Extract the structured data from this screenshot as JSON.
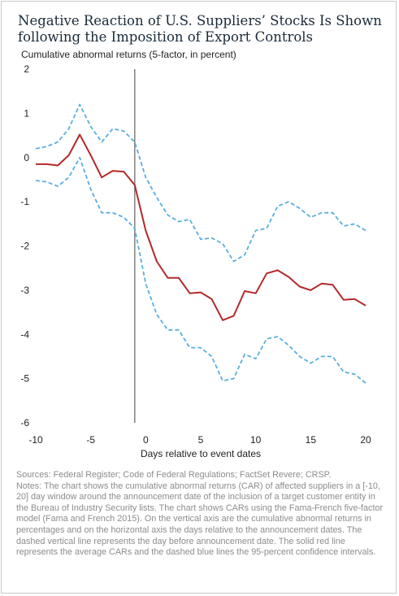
{
  "title": "Negative Reaction of U.S. Suppliers’ Stocks Is Shown following the Imposition of Export Controls",
  "sources": "Sources: Federal Register; Code of Federal Regulations; FactSet Revere; CRSP.",
  "notes": "Notes: The chart shows the cumulative abnormal returns (CAR) of affected suppliers in a [-10, 20] day window around the announcement date of the inclusion of a target customer entity in the Bureau of Industry Security lists. The chart shows CARs using the Fama-French five-factor model (Fama and French 2015). On the vertical axis are the cumulative abnormal returns in percentages and on the horizontal axis the days relative to the announcement dates. The dashed vertical line represents the day before announcement date. The solid red line represents the average CARs and the dashed blue lines the 95-percent confidence intervals.",
  "chart_data": {
    "type": "line",
    "ylabel": "Cumulative abnormal returns (5-factor, in percent)",
    "xlabel": "Days relative to event dates",
    "xlim": [
      -10,
      20
    ],
    "ylim": [
      -6,
      2
    ],
    "xticks": [
      -10,
      -5,
      0,
      5,
      10,
      15,
      20
    ],
    "yticks": [
      2,
      1,
      0,
      -1,
      -2,
      -3,
      -4,
      -5,
      -6
    ],
    "grid": false,
    "vline_x": -1,
    "x": [
      -10,
      -9,
      -8,
      -7,
      -6,
      -5,
      -4,
      -3,
      -2,
      -1,
      0,
      1,
      2,
      3,
      4,
      5,
      6,
      7,
      8,
      9,
      10,
      11,
      12,
      13,
      14,
      15,
      16,
      17,
      18,
      19,
      20
    ],
    "series": [
      {
        "role": "upper",
        "color": "#5aaee0",
        "style": "dashed",
        "values": [
          0.2,
          0.25,
          0.35,
          0.65,
          1.2,
          0.7,
          0.35,
          0.65,
          0.6,
          0.35,
          -0.45,
          -0.9,
          -1.3,
          -1.45,
          -1.4,
          -1.85,
          -1.82,
          -1.95,
          -2.35,
          -2.2,
          -1.65,
          -1.6,
          -1.1,
          -1.0,
          -1.15,
          -1.35,
          -1.25,
          -1.25,
          -1.55,
          -1.5,
          -1.65
        ]
      },
      {
        "role": "mean",
        "color": "#b22a2a",
        "style": "solid",
        "values": [
          -0.15,
          -0.15,
          -0.18,
          0.05,
          0.52,
          0.05,
          -0.45,
          -0.3,
          -0.32,
          -0.62,
          -1.65,
          -2.35,
          -2.72,
          -2.72,
          -3.07,
          -3.05,
          -3.2,
          -3.68,
          -3.58,
          -3.02,
          -3.07,
          -2.62,
          -2.55,
          -2.7,
          -2.92,
          -3.0,
          -2.85,
          -2.88,
          -3.22,
          -3.2,
          -3.35
        ]
      },
      {
        "role": "lower",
        "color": "#5aaee0",
        "style": "dashed",
        "values": [
          -0.52,
          -0.55,
          -0.65,
          -0.45,
          0.0,
          -0.72,
          -1.25,
          -1.25,
          -1.35,
          -1.6,
          -2.85,
          -3.55,
          -3.9,
          -3.9,
          -4.3,
          -4.3,
          -4.5,
          -5.05,
          -5.0,
          -4.45,
          -4.55,
          -4.1,
          -4.05,
          -4.25,
          -4.5,
          -4.65,
          -4.5,
          -4.5,
          -4.85,
          -4.9,
          -5.1
        ]
      }
    ]
  }
}
